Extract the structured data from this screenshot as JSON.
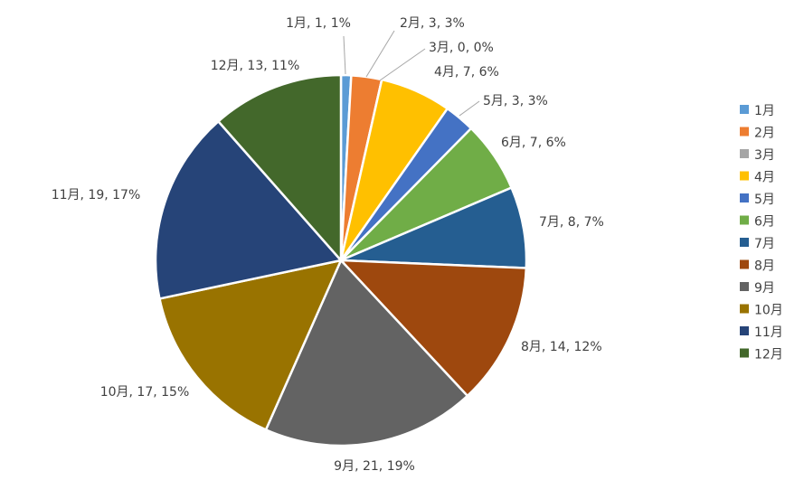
{
  "chart_data": {
    "type": "pie",
    "title": "",
    "categories": [
      "1月",
      "2月",
      "3月",
      "4月",
      "5月",
      "6月",
      "7月",
      "8月",
      "9月",
      "10月",
      "11月",
      "12月"
    ],
    "values": [
      1,
      3,
      0,
      7,
      3,
      7,
      8,
      14,
      21,
      17,
      19,
      13
    ],
    "data_labels": [
      "1月, 1, 1%",
      "2月, 3, 3%",
      "3月, 0, 0%",
      "4月, 7, 6%",
      "5月, 3, 3%",
      "6月, 7, 6%",
      "7月, 8, 7%",
      "8月, 14, 12%",
      "9月, 21, 19%",
      "10月, 17, 15%",
      "11月, 19, 17%",
      "12月, 13, 11%"
    ],
    "colors": [
      "#5B9BD5",
      "#ED7D31",
      "#A5A5A5",
      "#FFC000",
      "#4472C4",
      "#70AD47",
      "#255E91",
      "#9E480E",
      "#636363",
      "#997300",
      "#264478",
      "#43682B"
    ],
    "legend_position": "right",
    "start_angle": "top, clockwise"
  }
}
